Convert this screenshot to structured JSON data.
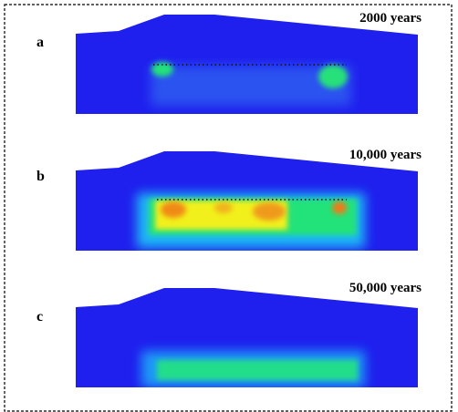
{
  "panels": [
    {
      "label": "a",
      "caption": "2000 years"
    },
    {
      "label": "b",
      "caption": "10,000 years"
    },
    {
      "label": "c",
      "caption": "50,000 years"
    }
  ]
}
